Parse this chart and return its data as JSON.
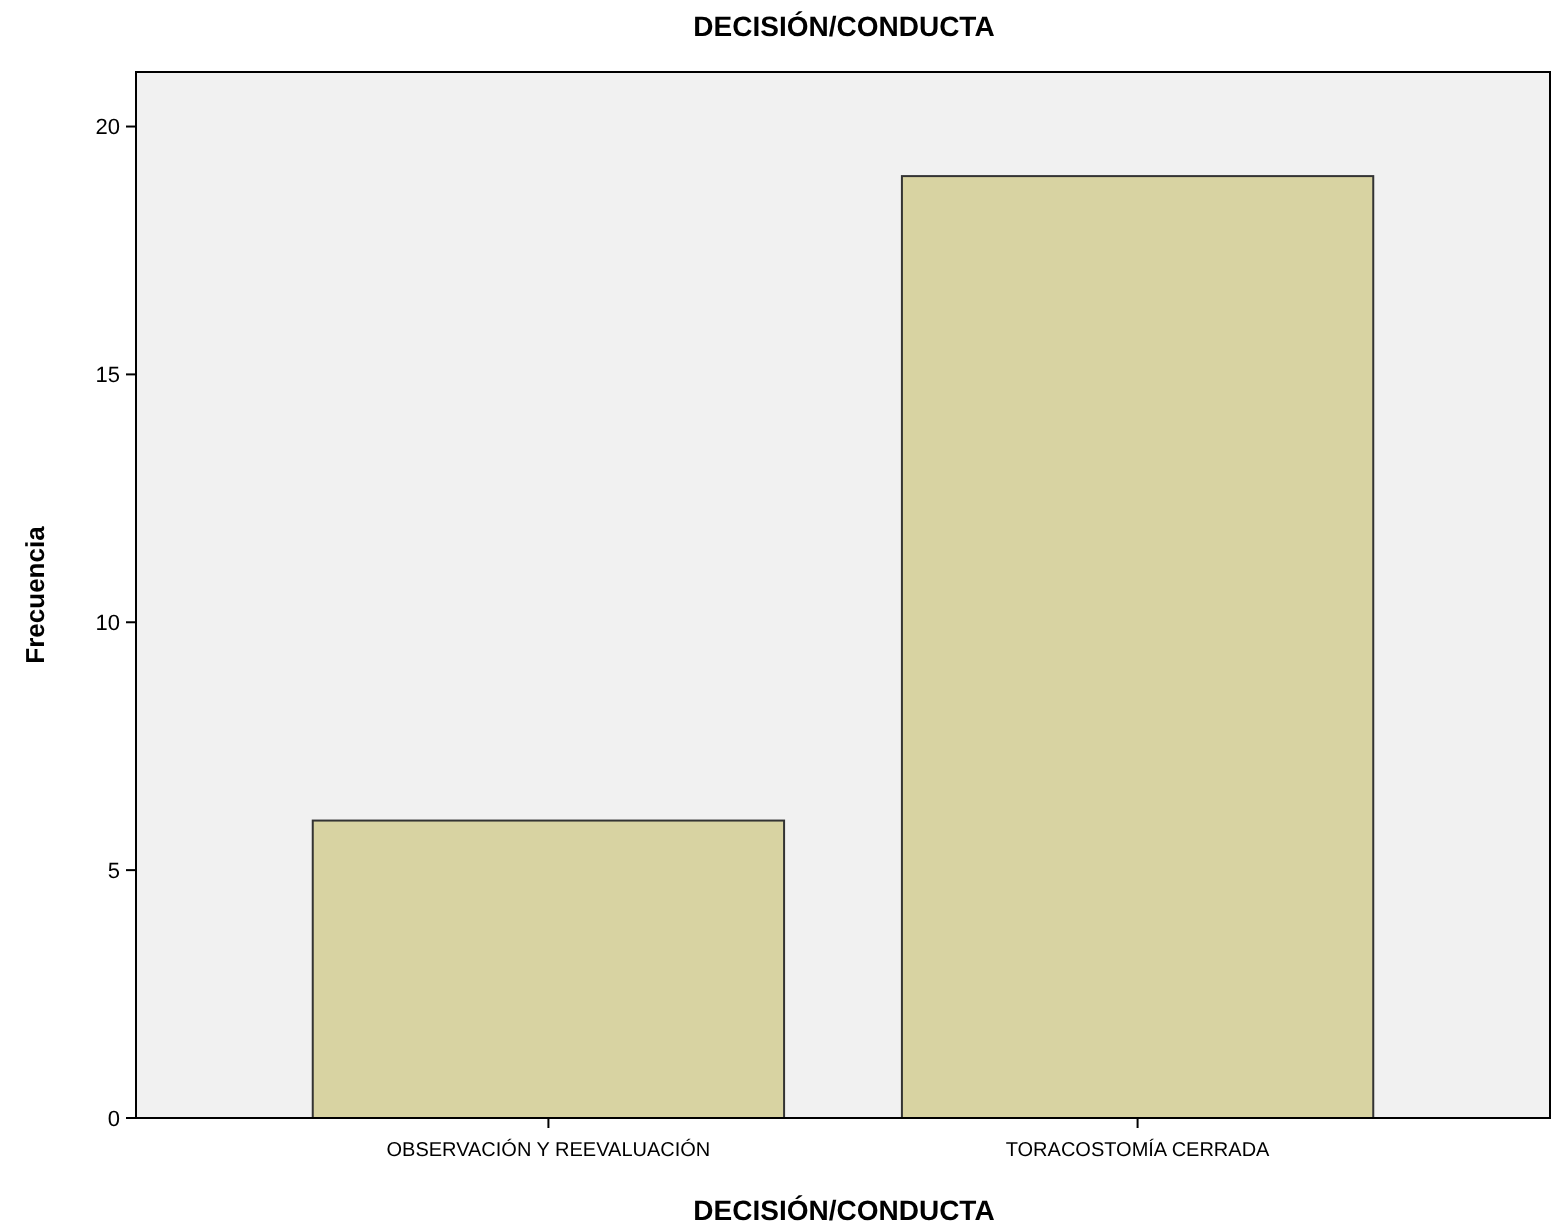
{
  "chart_data": {
    "type": "bar",
    "title": "DECISIÓN/CONDUCTA",
    "xlabel": "DECISIÓN/CONDUCTA",
    "ylabel": "Frecuencia",
    "categories": [
      "OBSERVACIÓN Y REEVALUACIÓN",
      "TORACOSTOMÍA CERRADA"
    ],
    "values": [
      6,
      19
    ],
    "color": "#d8d3a2",
    "ylim": [
      0,
      21.1
    ],
    "yticks": [
      0,
      5,
      10,
      15,
      20
    ],
    "grid": false
  }
}
